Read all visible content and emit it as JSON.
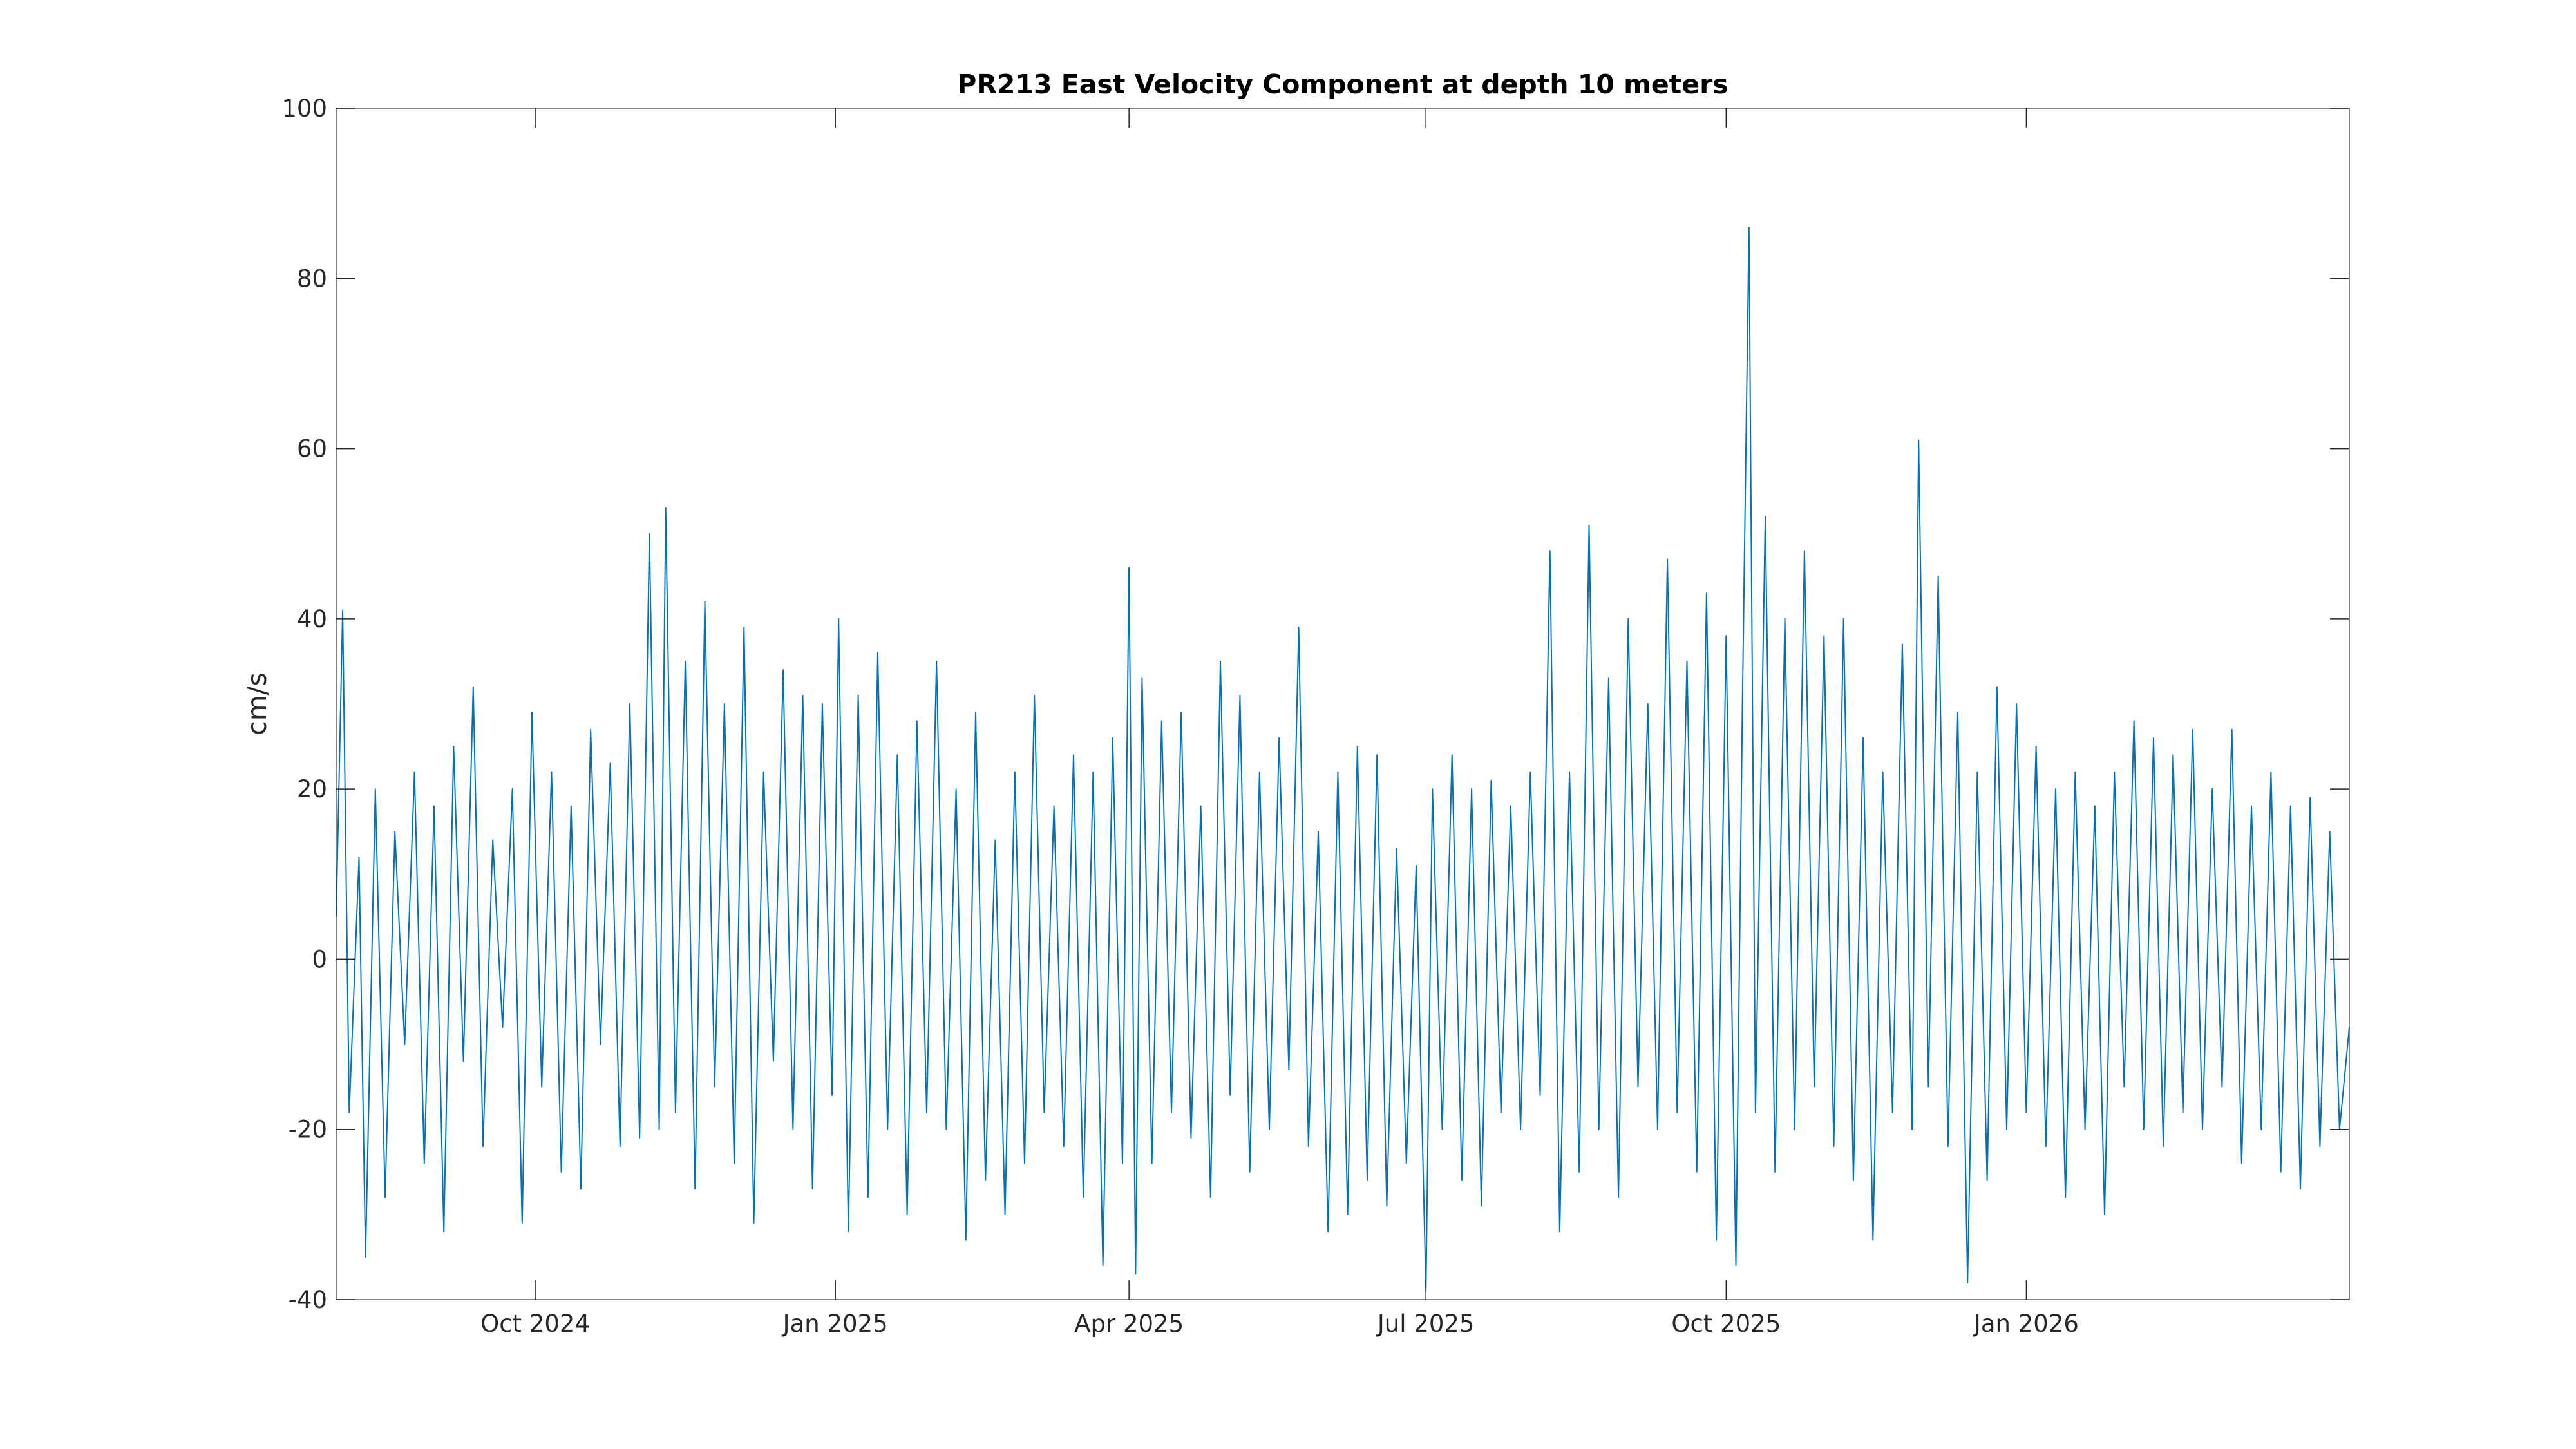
{
  "chart_data": {
    "type": "line",
    "title": "PR213 East Velocity Component at depth 10 meters",
    "xlabel": "",
    "ylabel": "cm/s",
    "xlim": [
      "2024-08-01",
      "2026-04-10"
    ],
    "ylim": [
      -40,
      100
    ],
    "x_ticks": [
      {
        "date": "2024-10-01",
        "label": "Oct 2024"
      },
      {
        "date": "2025-01-01",
        "label": "Jan 2025"
      },
      {
        "date": "2025-04-01",
        "label": "Apr 2025"
      },
      {
        "date": "2025-07-01",
        "label": "Jul 2025"
      },
      {
        "date": "2025-10-01",
        "label": "Oct 2025"
      },
      {
        "date": "2026-01-01",
        "label": "Jan 2026"
      }
    ],
    "y_ticks": [
      -40,
      -20,
      0,
      20,
      40,
      60,
      80,
      100
    ],
    "grid": false,
    "line_color": "#0072BD",
    "series": [
      {
        "name": "",
        "points": [
          [
            "2024-08-01",
            5
          ],
          [
            "2024-08-03",
            41
          ],
          [
            "2024-08-05",
            -18
          ],
          [
            "2024-08-08",
            12
          ],
          [
            "2024-08-10",
            -35
          ],
          [
            "2024-08-13",
            20
          ],
          [
            "2024-08-16",
            -28
          ],
          [
            "2024-08-19",
            15
          ],
          [
            "2024-08-22",
            -10
          ],
          [
            "2024-08-25",
            22
          ],
          [
            "2024-08-28",
            -24
          ],
          [
            "2024-08-31",
            18
          ],
          [
            "2024-09-03",
            -32
          ],
          [
            "2024-09-06",
            25
          ],
          [
            "2024-09-09",
            -12
          ],
          [
            "2024-09-12",
            32
          ],
          [
            "2024-09-15",
            -22
          ],
          [
            "2024-09-18",
            14
          ],
          [
            "2024-09-21",
            -8
          ],
          [
            "2024-09-24",
            20
          ],
          [
            "2024-09-27",
            -31
          ],
          [
            "2024-09-30",
            29
          ],
          [
            "2024-10-03",
            -15
          ],
          [
            "2024-10-06",
            22
          ],
          [
            "2024-10-09",
            -25
          ],
          [
            "2024-10-12",
            18
          ],
          [
            "2024-10-15",
            -27
          ],
          [
            "2024-10-18",
            27
          ],
          [
            "2024-10-21",
            -10
          ],
          [
            "2024-10-24",
            23
          ],
          [
            "2024-10-27",
            -22
          ],
          [
            "2024-10-30",
            30
          ],
          [
            "2024-11-02",
            -21
          ],
          [
            "2024-11-05",
            50
          ],
          [
            "2024-11-08",
            -20
          ],
          [
            "2024-11-10",
            53
          ],
          [
            "2024-11-13",
            -18
          ],
          [
            "2024-11-16",
            35
          ],
          [
            "2024-11-19",
            -27
          ],
          [
            "2024-11-22",
            42
          ],
          [
            "2024-11-25",
            -15
          ],
          [
            "2024-11-28",
            30
          ],
          [
            "2024-12-01",
            -24
          ],
          [
            "2024-12-04",
            39
          ],
          [
            "2024-12-07",
            -31
          ],
          [
            "2024-12-10",
            22
          ],
          [
            "2024-12-13",
            -12
          ],
          [
            "2024-12-16",
            34
          ],
          [
            "2024-12-19",
            -20
          ],
          [
            "2024-12-22",
            31
          ],
          [
            "2024-12-25",
            -27
          ],
          [
            "2024-12-28",
            30
          ],
          [
            "2024-12-31",
            -16
          ],
          [
            "2025-01-02",
            40
          ],
          [
            "2025-01-05",
            -32
          ],
          [
            "2025-01-08",
            31
          ],
          [
            "2025-01-11",
            -28
          ],
          [
            "2025-01-14",
            36
          ],
          [
            "2025-01-17",
            -20
          ],
          [
            "2025-01-20",
            24
          ],
          [
            "2025-01-23",
            -30
          ],
          [
            "2025-01-26",
            28
          ],
          [
            "2025-01-29",
            -18
          ],
          [
            "2025-02-01",
            35
          ],
          [
            "2025-02-04",
            -20
          ],
          [
            "2025-02-07",
            20
          ],
          [
            "2025-02-10",
            -33
          ],
          [
            "2025-02-13",
            29
          ],
          [
            "2025-02-16",
            -26
          ],
          [
            "2025-02-19",
            14
          ],
          [
            "2025-02-22",
            -30
          ],
          [
            "2025-02-25",
            22
          ],
          [
            "2025-02-28",
            -24
          ],
          [
            "2025-03-03",
            31
          ],
          [
            "2025-03-06",
            -18
          ],
          [
            "2025-03-09",
            18
          ],
          [
            "2025-03-12",
            -22
          ],
          [
            "2025-03-15",
            24
          ],
          [
            "2025-03-18",
            -28
          ],
          [
            "2025-03-21",
            22
          ],
          [
            "2025-03-24",
            -36
          ],
          [
            "2025-03-27",
            26
          ],
          [
            "2025-03-30",
            -24
          ],
          [
            "2025-04-01",
            46
          ],
          [
            "2025-04-03",
            -37
          ],
          [
            "2025-04-05",
            33
          ],
          [
            "2025-04-08",
            -24
          ],
          [
            "2025-04-11",
            28
          ],
          [
            "2025-04-14",
            -18
          ],
          [
            "2025-04-17",
            29
          ],
          [
            "2025-04-20",
            -21
          ],
          [
            "2025-04-23",
            18
          ],
          [
            "2025-04-26",
            -28
          ],
          [
            "2025-04-29",
            35
          ],
          [
            "2025-05-02",
            -16
          ],
          [
            "2025-05-05",
            31
          ],
          [
            "2025-05-08",
            -25
          ],
          [
            "2025-05-11",
            22
          ],
          [
            "2025-05-14",
            -20
          ],
          [
            "2025-05-17",
            26
          ],
          [
            "2025-05-20",
            -13
          ],
          [
            "2025-05-23",
            39
          ],
          [
            "2025-05-26",
            -22
          ],
          [
            "2025-05-29",
            15
          ],
          [
            "2025-06-01",
            -32
          ],
          [
            "2025-06-04",
            22
          ],
          [
            "2025-06-07",
            -30
          ],
          [
            "2025-06-10",
            25
          ],
          [
            "2025-06-13",
            -26
          ],
          [
            "2025-06-16",
            24
          ],
          [
            "2025-06-19",
            -29
          ],
          [
            "2025-06-22",
            13
          ],
          [
            "2025-06-25",
            -24
          ],
          [
            "2025-06-28",
            11
          ],
          [
            "2025-07-01",
            -39
          ],
          [
            "2025-07-03",
            20
          ],
          [
            "2025-07-06",
            -20
          ],
          [
            "2025-07-09",
            24
          ],
          [
            "2025-07-12",
            -26
          ],
          [
            "2025-07-15",
            20
          ],
          [
            "2025-07-18",
            -29
          ],
          [
            "2025-07-21",
            21
          ],
          [
            "2025-07-24",
            -18
          ],
          [
            "2025-07-27",
            18
          ],
          [
            "2025-07-30",
            -20
          ],
          [
            "2025-08-02",
            22
          ],
          [
            "2025-08-05",
            -16
          ],
          [
            "2025-08-08",
            48
          ],
          [
            "2025-08-11",
            -32
          ],
          [
            "2025-08-14",
            22
          ],
          [
            "2025-08-17",
            -25
          ],
          [
            "2025-08-20",
            51
          ],
          [
            "2025-08-23",
            -20
          ],
          [
            "2025-08-26",
            33
          ],
          [
            "2025-08-29",
            -28
          ],
          [
            "2025-09-01",
            40
          ],
          [
            "2025-09-04",
            -15
          ],
          [
            "2025-09-07",
            30
          ],
          [
            "2025-09-10",
            -20
          ],
          [
            "2025-09-13",
            47
          ],
          [
            "2025-09-16",
            -18
          ],
          [
            "2025-09-19",
            35
          ],
          [
            "2025-09-22",
            -25
          ],
          [
            "2025-09-25",
            43
          ],
          [
            "2025-09-28",
            -33
          ],
          [
            "2025-10-01",
            38
          ],
          [
            "2025-10-04",
            -36
          ],
          [
            "2025-10-06",
            30
          ],
          [
            "2025-10-08",
            86
          ],
          [
            "2025-10-10",
            -18
          ],
          [
            "2025-10-13",
            52
          ],
          [
            "2025-10-16",
            -25
          ],
          [
            "2025-10-19",
            40
          ],
          [
            "2025-10-22",
            -20
          ],
          [
            "2025-10-25",
            48
          ],
          [
            "2025-10-28",
            -15
          ],
          [
            "2025-10-31",
            38
          ],
          [
            "2025-11-03",
            -22
          ],
          [
            "2025-11-06",
            40
          ],
          [
            "2025-11-09",
            -26
          ],
          [
            "2025-11-12",
            26
          ],
          [
            "2025-11-15",
            -33
          ],
          [
            "2025-11-18",
            22
          ],
          [
            "2025-11-21",
            -18
          ],
          [
            "2025-11-24",
            37
          ],
          [
            "2025-11-27",
            -20
          ],
          [
            "2025-11-29",
            61
          ],
          [
            "2025-12-02",
            -15
          ],
          [
            "2025-12-05",
            45
          ],
          [
            "2025-12-08",
            -22
          ],
          [
            "2025-12-11",
            29
          ],
          [
            "2025-12-14",
            -38
          ],
          [
            "2025-12-17",
            22
          ],
          [
            "2025-12-20",
            -26
          ],
          [
            "2025-12-23",
            32
          ],
          [
            "2025-12-26",
            -20
          ],
          [
            "2025-12-29",
            30
          ],
          [
            "2026-01-01",
            -18
          ],
          [
            "2026-01-04",
            25
          ],
          [
            "2026-01-07",
            -22
          ],
          [
            "2026-01-10",
            20
          ],
          [
            "2026-01-13",
            -28
          ],
          [
            "2026-01-16",
            22
          ],
          [
            "2026-01-19",
            -20
          ],
          [
            "2026-01-22",
            18
          ],
          [
            "2026-01-25",
            -30
          ],
          [
            "2026-01-28",
            22
          ],
          [
            "2026-01-31",
            -15
          ],
          [
            "2026-02-03",
            28
          ],
          [
            "2026-02-06",
            -20
          ],
          [
            "2026-02-09",
            26
          ],
          [
            "2026-02-12",
            -22
          ],
          [
            "2026-02-15",
            24
          ],
          [
            "2026-02-18",
            -18
          ],
          [
            "2026-02-21",
            27
          ],
          [
            "2026-02-24",
            -20
          ],
          [
            "2026-02-27",
            20
          ],
          [
            "2026-03-02",
            -15
          ],
          [
            "2026-03-05",
            27
          ],
          [
            "2026-03-08",
            -24
          ],
          [
            "2026-03-11",
            18
          ],
          [
            "2026-03-14",
            -20
          ],
          [
            "2026-03-17",
            22
          ],
          [
            "2026-03-20",
            -25
          ],
          [
            "2026-03-23",
            18
          ],
          [
            "2026-03-26",
            -27
          ],
          [
            "2026-03-29",
            19
          ],
          [
            "2026-04-01",
            -22
          ],
          [
            "2026-04-04",
            15
          ],
          [
            "2026-04-07",
            -20
          ],
          [
            "2026-04-10",
            -8
          ]
        ]
      }
    ]
  }
}
